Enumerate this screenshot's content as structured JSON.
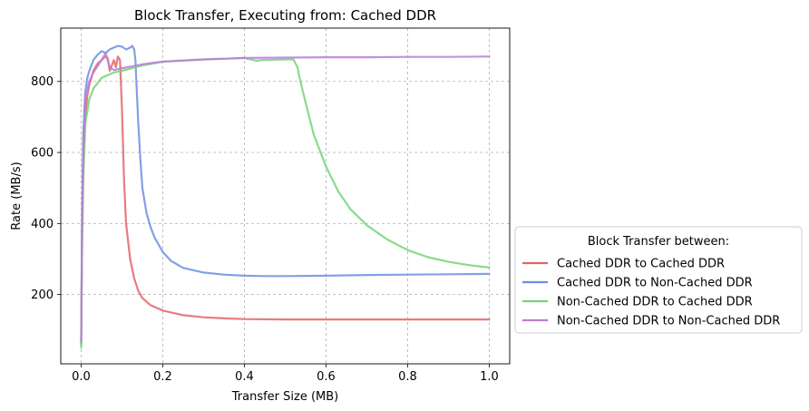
{
  "chart_data": {
    "type": "line",
    "title": "Block Transfer, Executing from: Cached DDR",
    "xlabel": "Transfer Size (MB)",
    "ylabel": "Rate (MB/s)",
    "xlim": [
      -0.05,
      1.05
    ],
    "ylim": [
      5,
      950
    ],
    "xticks": [
      0.0,
      0.2,
      0.4,
      0.6,
      0.8,
      1.0
    ],
    "xtick_labels": [
      "0.0",
      "0.2",
      "0.4",
      "0.6",
      "0.8",
      "1.0"
    ],
    "yticks": [
      200,
      400,
      600,
      800
    ],
    "ytick_labels": [
      "200",
      "400",
      "600",
      "800"
    ],
    "grid": true,
    "legend_title": "Block Transfer between:",
    "legend_position": "outside-right",
    "series": [
      {
        "name": "Cached DDR to Cached DDR",
        "color": "#e06666",
        "x": [
          0.0,
          0.002,
          0.005,
          0.01,
          0.015,
          0.02,
          0.03,
          0.04,
          0.05,
          0.06,
          0.065,
          0.07,
          0.075,
          0.08,
          0.085,
          0.09,
          0.095,
          0.1,
          0.105,
          0.11,
          0.12,
          0.13,
          0.14,
          0.15,
          0.17,
          0.2,
          0.25,
          0.3,
          0.35,
          0.4,
          0.5,
          0.6,
          0.7,
          0.8,
          0.9,
          1.0
        ],
        "y": [
          60,
          350,
          560,
          700,
          760,
          790,
          830,
          850,
          860,
          870,
          865,
          830,
          845,
          860,
          840,
          870,
          860,
          720,
          520,
          400,
          300,
          245,
          210,
          190,
          170,
          155,
          142,
          136,
          133,
          131,
          130,
          130,
          130,
          130,
          130,
          130
        ]
      },
      {
        "name": "Cached DDR to Non-Cached DDR",
        "color": "#6d8fe0",
        "x": [
          0.0,
          0.002,
          0.005,
          0.01,
          0.015,
          0.02,
          0.03,
          0.04,
          0.05,
          0.06,
          0.07,
          0.08,
          0.09,
          0.1,
          0.11,
          0.12,
          0.125,
          0.13,
          0.133,
          0.136,
          0.14,
          0.145,
          0.15,
          0.16,
          0.17,
          0.18,
          0.2,
          0.22,
          0.25,
          0.3,
          0.35,
          0.4,
          0.45,
          0.5,
          0.6,
          0.7,
          0.8,
          0.9,
          1.0
        ],
        "y": [
          60,
          400,
          650,
          770,
          810,
          830,
          860,
          875,
          885,
          880,
          890,
          895,
          900,
          898,
          890,
          895,
          900,
          890,
          860,
          780,
          680,
          580,
          500,
          430,
          390,
          360,
          320,
          295,
          275,
          262,
          256,
          253,
          252,
          252,
          253,
          255,
          256,
          257,
          258
        ]
      },
      {
        "name": "Non-Cached DDR to Cached DDR",
        "color": "#77d477",
        "x": [
          0.0,
          0.002,
          0.005,
          0.01,
          0.02,
          0.03,
          0.05,
          0.08,
          0.1,
          0.15,
          0.2,
          0.3,
          0.4,
          0.43,
          0.44,
          0.5,
          0.52,
          0.53,
          0.535,
          0.55,
          0.57,
          0.6,
          0.63,
          0.66,
          0.7,
          0.75,
          0.8,
          0.85,
          0.9,
          0.95,
          1.0
        ],
        "y": [
          50,
          300,
          520,
          680,
          750,
          780,
          810,
          825,
          830,
          845,
          855,
          862,
          866,
          858,
          860,
          862,
          862,
          840,
          810,
          740,
          650,
          560,
          490,
          440,
          395,
          355,
          325,
          305,
          292,
          283,
          276
        ]
      },
      {
        "name": "Non-Cached DDR to Non-Cached DDR",
        "color": "#b97ed6",
        "x": [
          0.0,
          0.002,
          0.005,
          0.01,
          0.02,
          0.03,
          0.05,
          0.06,
          0.07,
          0.08,
          0.1,
          0.15,
          0.2,
          0.3,
          0.4,
          0.5,
          0.6,
          0.7,
          0.8,
          0.9,
          1.0
        ],
        "y": [
          70,
          380,
          600,
          750,
          800,
          825,
          860,
          880,
          840,
          832,
          837,
          848,
          856,
          862,
          866,
          867,
          868,
          868,
          869,
          869,
          870
        ]
      }
    ]
  }
}
